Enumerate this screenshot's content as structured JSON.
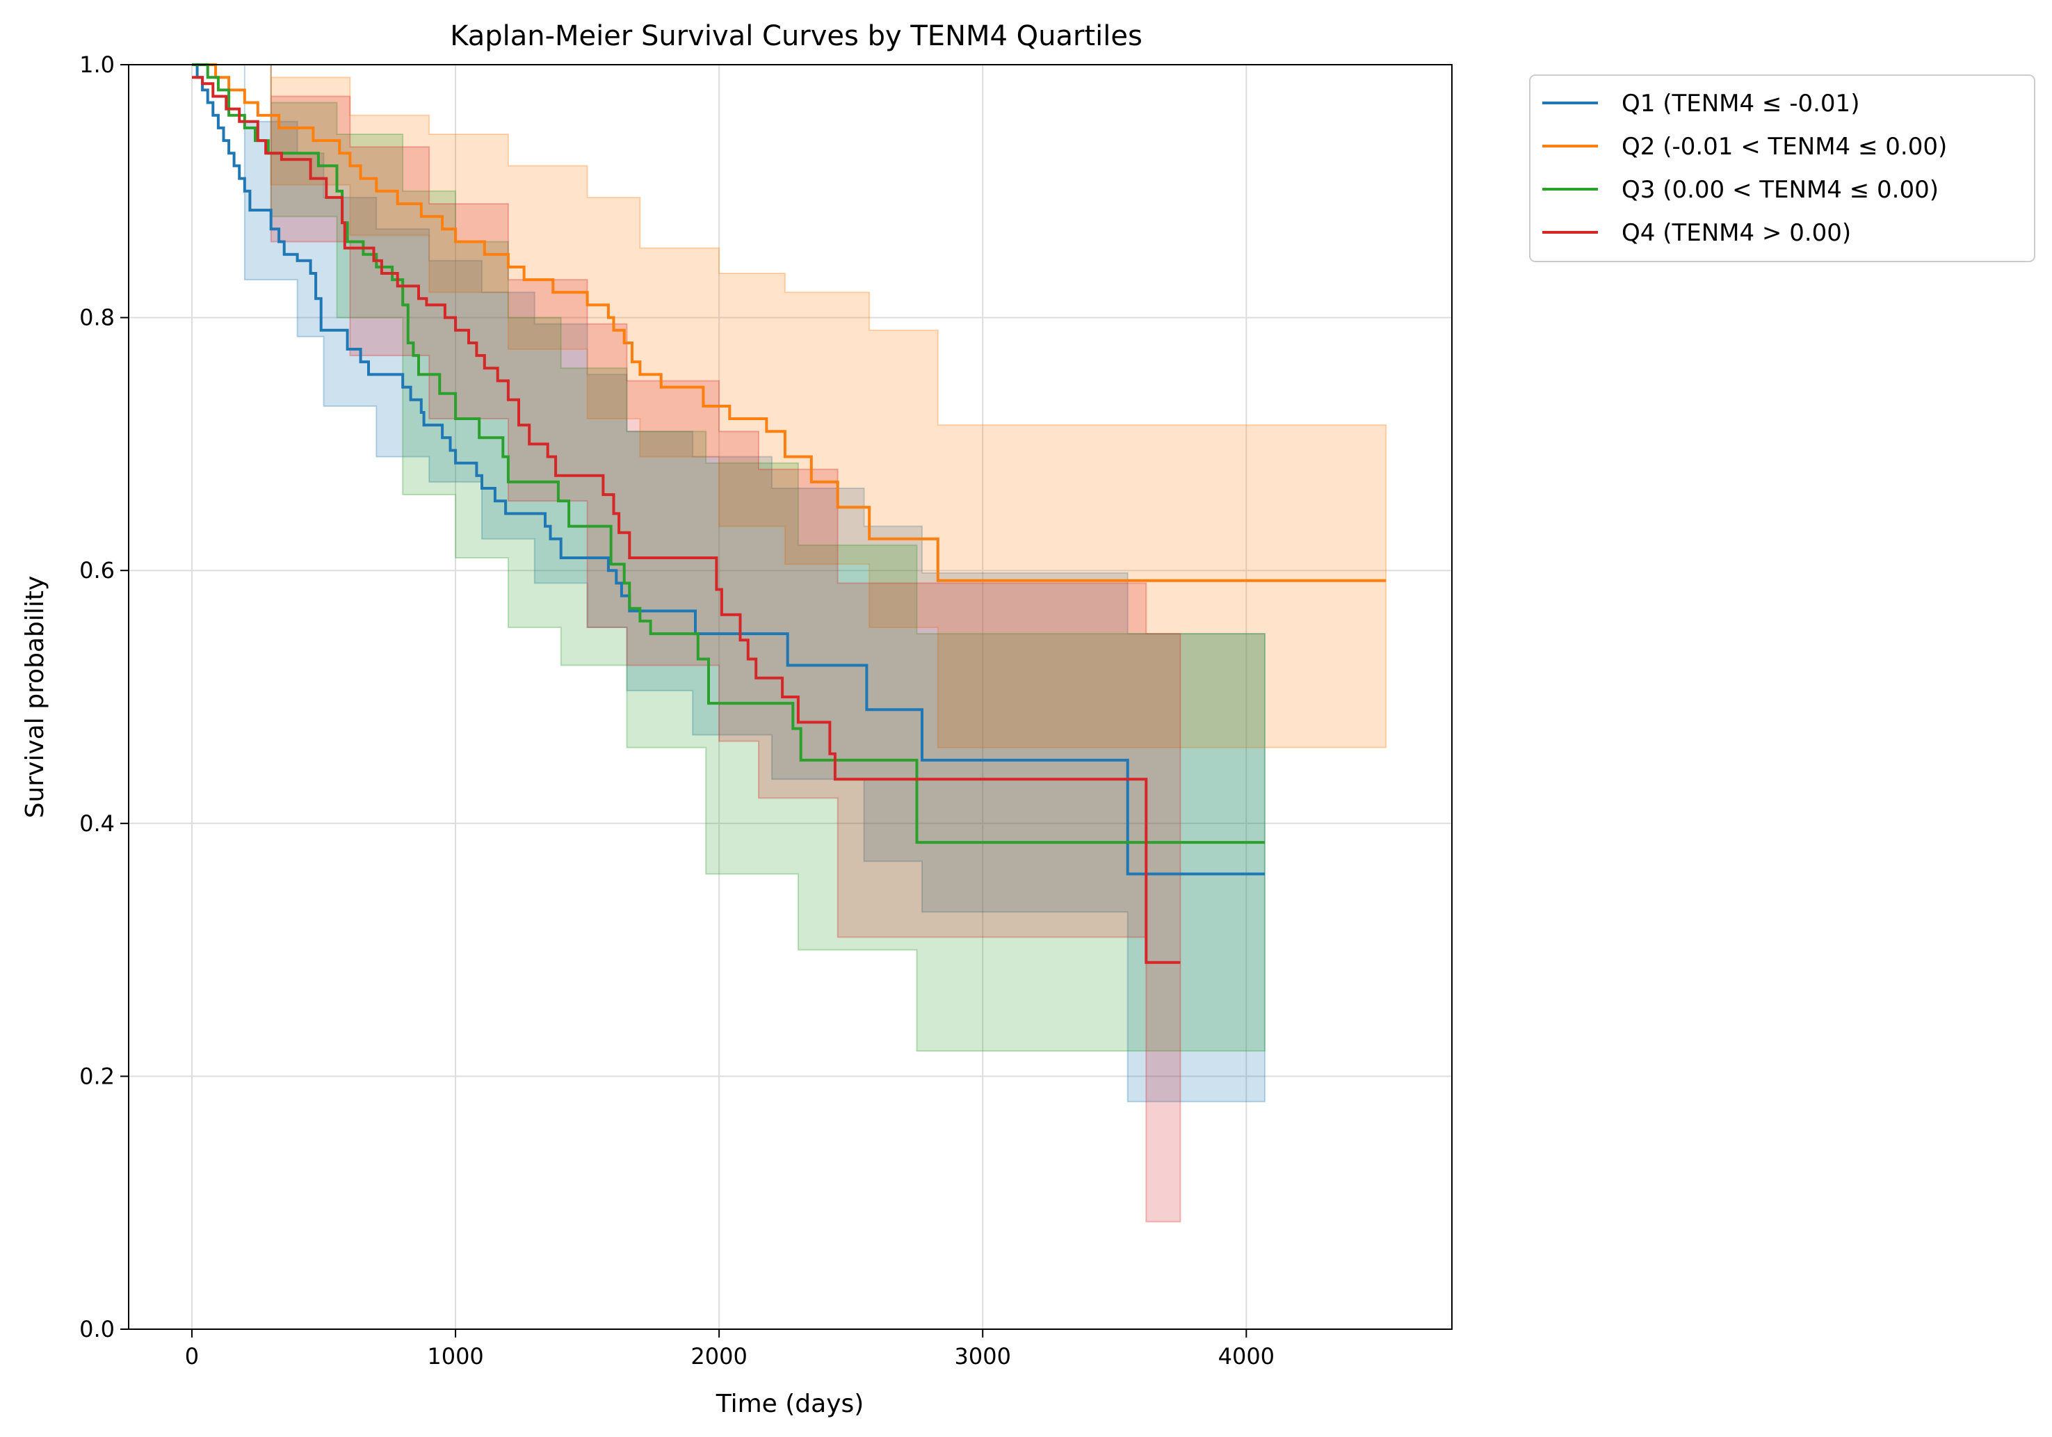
{
  "chart_data": {
    "type": "line",
    "title": "Kaplan-Meier Survival Curves by TENM4 Quartiles",
    "xlabel": "Time (days)",
    "ylabel": "Survival probability",
    "xlim": [
      -240,
      4780
    ],
    "ylim": [
      0,
      1
    ],
    "x_ticks": [
      0,
      1000,
      2000,
      3000,
      4000
    ],
    "y_ticks": [
      0.0,
      0.2,
      0.4,
      0.6,
      0.8,
      1.0
    ],
    "x_tick_labels": [
      "0",
      "1000",
      "2000",
      "3000",
      "4000"
    ],
    "y_tick_labels": [
      "0.0",
      "0.2",
      "0.4",
      "0.6",
      "0.8",
      "1.0"
    ],
    "grid": true,
    "legend_position": "outside-top-right",
    "colors": {
      "Q1": "#1f77b4",
      "Q2": "#ff7f0e",
      "Q3": "#2ca02c",
      "Q4": "#d62728"
    },
    "series": [
      {
        "name": "Q1 (TENM4 ≤ -0.01)",
        "color": "#1f77b4",
        "steps": [
          [
            0,
            1.0
          ],
          [
            20,
            0.99
          ],
          [
            40,
            0.98
          ],
          [
            60,
            0.97
          ],
          [
            80,
            0.96
          ],
          [
            100,
            0.95
          ],
          [
            120,
            0.94
          ],
          [
            140,
            0.93
          ],
          [
            160,
            0.92
          ],
          [
            180,
            0.91
          ],
          [
            200,
            0.9
          ],
          [
            220,
            0.885
          ],
          [
            300,
            0.87
          ],
          [
            330,
            0.86
          ],
          [
            350,
            0.85
          ],
          [
            400,
            0.845
          ],
          [
            450,
            0.835
          ],
          [
            470,
            0.815
          ],
          [
            490,
            0.79
          ],
          [
            590,
            0.775
          ],
          [
            640,
            0.765
          ],
          [
            670,
            0.755
          ],
          [
            800,
            0.745
          ],
          [
            830,
            0.735
          ],
          [
            870,
            0.725
          ],
          [
            880,
            0.715
          ],
          [
            950,
            0.705
          ],
          [
            980,
            0.695
          ],
          [
            1000,
            0.685
          ],
          [
            1080,
            0.675
          ],
          [
            1100,
            0.665
          ],
          [
            1150,
            0.655
          ],
          [
            1190,
            0.645
          ],
          [
            1340,
            0.635
          ],
          [
            1360,
            0.625
          ],
          [
            1400,
            0.61
          ],
          [
            1580,
            0.6
          ],
          [
            1610,
            0.59
          ],
          [
            1630,
            0.58
          ],
          [
            1660,
            0.568
          ],
          [
            1910,
            0.55
          ],
          [
            2260,
            0.525
          ],
          [
            2560,
            0.49
          ],
          [
            2770,
            0.45
          ],
          [
            3550,
            0.36
          ],
          [
            4070,
            0.36
          ]
        ],
        "ci_upper": [
          [
            0,
            1.0
          ],
          [
            200,
            0.955
          ],
          [
            400,
            0.93
          ],
          [
            500,
            0.895
          ],
          [
            700,
            0.87
          ],
          [
            900,
            0.845
          ],
          [
            1100,
            0.82
          ],
          [
            1300,
            0.795
          ],
          [
            1500,
            0.755
          ],
          [
            1650,
            0.71
          ],
          [
            1900,
            0.69
          ],
          [
            2200,
            0.665
          ],
          [
            2550,
            0.635
          ],
          [
            2770,
            0.598
          ],
          [
            3550,
            0.55
          ],
          [
            4070,
            0.55
          ]
        ],
        "ci_lower": [
          [
            0,
            1.0
          ],
          [
            200,
            0.83
          ],
          [
            400,
            0.785
          ],
          [
            500,
            0.73
          ],
          [
            700,
            0.69
          ],
          [
            900,
            0.67
          ],
          [
            1100,
            0.625
          ],
          [
            1300,
            0.59
          ],
          [
            1500,
            0.555
          ],
          [
            1650,
            0.505
          ],
          [
            1900,
            0.47
          ],
          [
            2200,
            0.435
          ],
          [
            2550,
            0.37
          ],
          [
            2770,
            0.33
          ],
          [
            3550,
            0.18
          ],
          [
            4070,
            0.18
          ]
        ]
      },
      {
        "name": "Q2 (-0.01 < TENM4 ≤ 0.00)",
        "color": "#ff7f0e",
        "steps": [
          [
            0,
            1.0
          ],
          [
            90,
            0.99
          ],
          [
            140,
            0.98
          ],
          [
            200,
            0.97
          ],
          [
            250,
            0.96
          ],
          [
            330,
            0.95
          ],
          [
            460,
            0.94
          ],
          [
            560,
            0.93
          ],
          [
            600,
            0.92
          ],
          [
            640,
            0.91
          ],
          [
            700,
            0.9
          ],
          [
            780,
            0.89
          ],
          [
            870,
            0.88
          ],
          [
            950,
            0.87
          ],
          [
            1000,
            0.86
          ],
          [
            1110,
            0.85
          ],
          [
            1200,
            0.84
          ],
          [
            1260,
            0.83
          ],
          [
            1370,
            0.82
          ],
          [
            1500,
            0.81
          ],
          [
            1580,
            0.8
          ],
          [
            1600,
            0.79
          ],
          [
            1640,
            0.78
          ],
          [
            1670,
            0.765
          ],
          [
            1700,
            0.755
          ],
          [
            1780,
            0.745
          ],
          [
            1940,
            0.73
          ],
          [
            2040,
            0.72
          ],
          [
            2180,
            0.71
          ],
          [
            2250,
            0.69
          ],
          [
            2350,
            0.67
          ],
          [
            2450,
            0.65
          ],
          [
            2570,
            0.625
          ],
          [
            2830,
            0.592
          ],
          [
            4530,
            0.592
          ]
        ],
        "ci_upper": [
          [
            0,
            1.0
          ],
          [
            300,
            0.99
          ],
          [
            600,
            0.96
          ],
          [
            900,
            0.945
          ],
          [
            1200,
            0.92
          ],
          [
            1500,
            0.895
          ],
          [
            1700,
            0.855
          ],
          [
            2000,
            0.835
          ],
          [
            2250,
            0.82
          ],
          [
            2570,
            0.79
          ],
          [
            2830,
            0.715
          ],
          [
            4530,
            0.715
          ]
        ],
        "ci_lower": [
          [
            0,
            1.0
          ],
          [
            300,
            0.905
          ],
          [
            600,
            0.865
          ],
          [
            900,
            0.82
          ],
          [
            1200,
            0.775
          ],
          [
            1500,
            0.72
          ],
          [
            1700,
            0.69
          ],
          [
            2000,
            0.635
          ],
          [
            2250,
            0.605
          ],
          [
            2570,
            0.555
          ],
          [
            2830,
            0.46
          ],
          [
            4530,
            0.46
          ]
        ]
      },
      {
        "name": "Q3 (0.00 < TENM4 ≤ 0.00)",
        "color": "#2ca02c",
        "steps": [
          [
            0,
            1.0
          ],
          [
            60,
            0.99
          ],
          [
            100,
            0.98
          ],
          [
            140,
            0.96
          ],
          [
            200,
            0.95
          ],
          [
            240,
            0.94
          ],
          [
            290,
            0.93
          ],
          [
            480,
            0.92
          ],
          [
            550,
            0.9
          ],
          [
            570,
            0.875
          ],
          [
            590,
            0.86
          ],
          [
            650,
            0.85
          ],
          [
            700,
            0.84
          ],
          [
            760,
            0.83
          ],
          [
            800,
            0.81
          ],
          [
            820,
            0.78
          ],
          [
            840,
            0.77
          ],
          [
            860,
            0.755
          ],
          [
            940,
            0.74
          ],
          [
            1000,
            0.72
          ],
          [
            1090,
            0.705
          ],
          [
            1180,
            0.69
          ],
          [
            1200,
            0.67
          ],
          [
            1390,
            0.655
          ],
          [
            1430,
            0.635
          ],
          [
            1590,
            0.605
          ],
          [
            1640,
            0.59
          ],
          [
            1660,
            0.57
          ],
          [
            1700,
            0.56
          ],
          [
            1740,
            0.55
          ],
          [
            1920,
            0.53
          ],
          [
            1960,
            0.495
          ],
          [
            2280,
            0.475
          ],
          [
            2310,
            0.45
          ],
          [
            2750,
            0.385
          ],
          [
            4070,
            0.385
          ]
        ],
        "ci_upper": [
          [
            0,
            1.0
          ],
          [
            300,
            0.97
          ],
          [
            550,
            0.945
          ],
          [
            800,
            0.9
          ],
          [
            1000,
            0.86
          ],
          [
            1200,
            0.8
          ],
          [
            1400,
            0.76
          ],
          [
            1650,
            0.71
          ],
          [
            1950,
            0.685
          ],
          [
            2300,
            0.62
          ],
          [
            2750,
            0.55
          ],
          [
            4070,
            0.55
          ]
        ],
        "ci_lower": [
          [
            0,
            1.0
          ],
          [
            300,
            0.88
          ],
          [
            550,
            0.8
          ],
          [
            800,
            0.66
          ],
          [
            1000,
            0.61
          ],
          [
            1200,
            0.555
          ],
          [
            1400,
            0.525
          ],
          [
            1650,
            0.46
          ],
          [
            1950,
            0.36
          ],
          [
            2300,
            0.3
          ],
          [
            2750,
            0.22
          ],
          [
            4070,
            0.22
          ]
        ]
      },
      {
        "name": "Q4 (TENM4 > 0.00)",
        "color": "#d62728",
        "steps": [
          [
            0,
            0.99
          ],
          [
            40,
            0.985
          ],
          [
            80,
            0.975
          ],
          [
            130,
            0.965
          ],
          [
            180,
            0.955
          ],
          [
            250,
            0.94
          ],
          [
            280,
            0.93
          ],
          [
            340,
            0.925
          ],
          [
            450,
            0.91
          ],
          [
            510,
            0.895
          ],
          [
            570,
            0.875
          ],
          [
            580,
            0.855
          ],
          [
            690,
            0.845
          ],
          [
            720,
            0.835
          ],
          [
            780,
            0.825
          ],
          [
            860,
            0.815
          ],
          [
            890,
            0.81
          ],
          [
            960,
            0.8
          ],
          [
            1000,
            0.79
          ],
          [
            1050,
            0.78
          ],
          [
            1080,
            0.77
          ],
          [
            1110,
            0.76
          ],
          [
            1160,
            0.75
          ],
          [
            1200,
            0.735
          ],
          [
            1240,
            0.715
          ],
          [
            1280,
            0.7
          ],
          [
            1350,
            0.69
          ],
          [
            1380,
            0.675
          ],
          [
            1560,
            0.66
          ],
          [
            1600,
            0.645
          ],
          [
            1620,
            0.63
          ],
          [
            1660,
            0.61
          ],
          [
            1990,
            0.585
          ],
          [
            2010,
            0.565
          ],
          [
            2080,
            0.545
          ],
          [
            2110,
            0.53
          ],
          [
            2140,
            0.515
          ],
          [
            2240,
            0.5
          ],
          [
            2300,
            0.48
          ],
          [
            2420,
            0.455
          ],
          [
            2440,
            0.435
          ],
          [
            3620,
            0.29
          ],
          [
            3750,
            0.29
          ]
        ],
        "ci_upper": [
          [
            0,
            1.0
          ],
          [
            300,
            0.975
          ],
          [
            600,
            0.935
          ],
          [
            900,
            0.89
          ],
          [
            1200,
            0.83
          ],
          [
            1500,
            0.795
          ],
          [
            1650,
            0.75
          ],
          [
            2000,
            0.71
          ],
          [
            2150,
            0.68
          ],
          [
            2450,
            0.59
          ],
          [
            3620,
            0.55
          ],
          [
            3750,
            0.55
          ]
        ],
        "ci_lower": [
          [
            0,
            1.0
          ],
          [
            300,
            0.86
          ],
          [
            600,
            0.77
          ],
          [
            900,
            0.72
          ],
          [
            1200,
            0.655
          ],
          [
            1500,
            0.555
          ],
          [
            1650,
            0.525
          ],
          [
            2000,
            0.465
          ],
          [
            2150,
            0.42
          ],
          [
            2450,
            0.31
          ],
          [
            3620,
            0.085
          ],
          [
            3750,
            0.085
          ]
        ]
      }
    ]
  }
}
